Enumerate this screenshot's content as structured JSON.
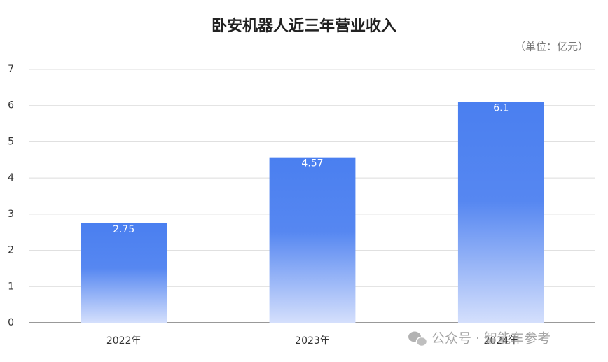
{
  "chart_data": {
    "type": "bar",
    "title": "卧安机器人近三年营业收入",
    "unit": "（单位：亿元）",
    "categories": [
      "2022年",
      "2023年",
      "2024年"
    ],
    "values": [
      2.75,
      4.57,
      6.1
    ],
    "color": "#4f82f0",
    "ylim": [
      0,
      7
    ],
    "yticks": [
      0,
      1,
      2,
      3,
      4,
      5,
      6,
      7
    ],
    "grid": true,
    "watermark": "公众号 · 智能车参考"
  }
}
